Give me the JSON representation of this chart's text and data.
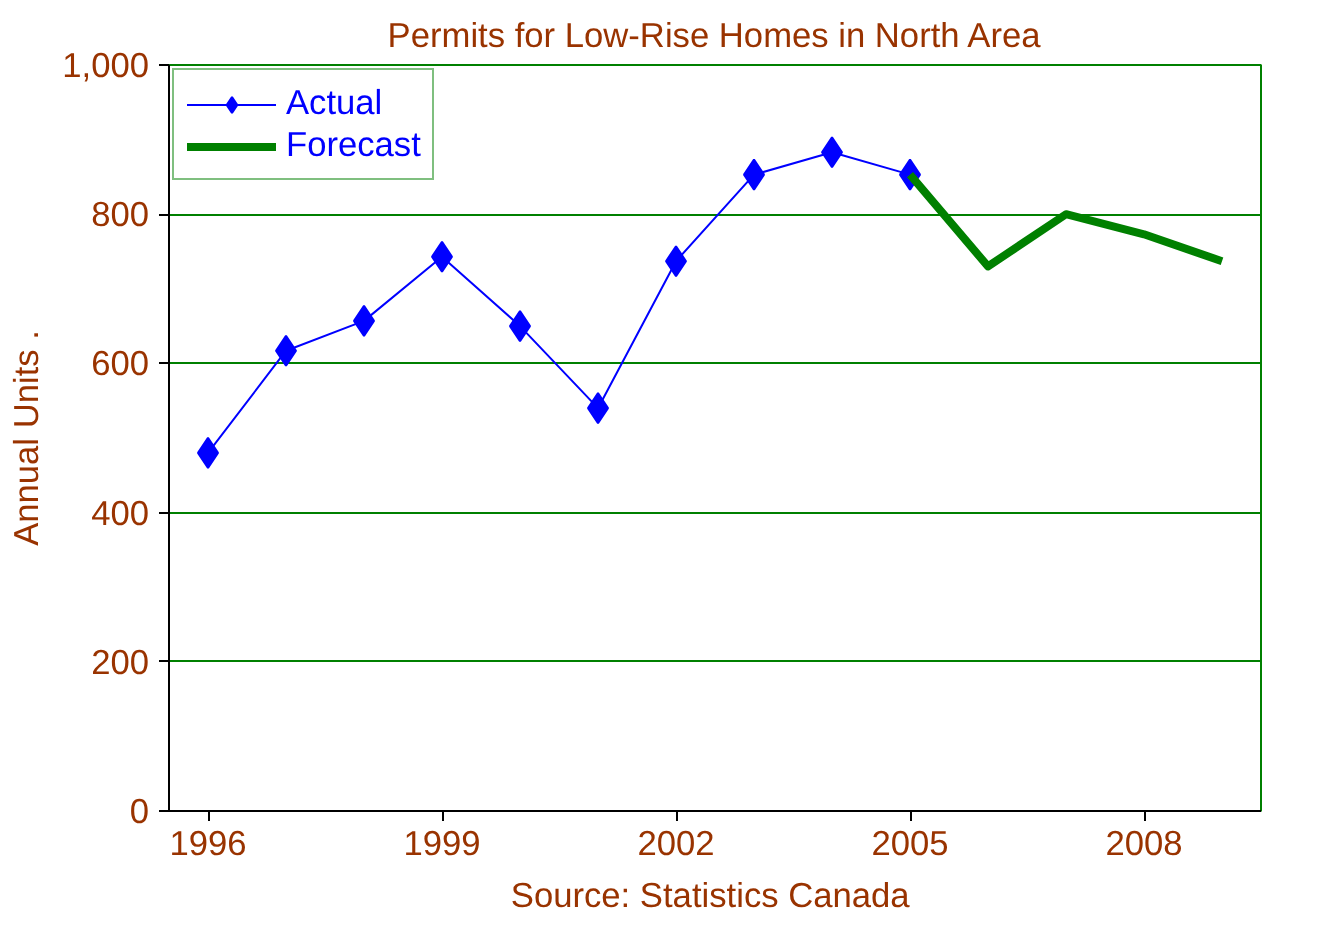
{
  "chart_data": {
    "type": "line",
    "title": "Permits for Low-Rise Homes in North Area",
    "ylabel": "Annual Units .",
    "x": [
      1996,
      1997,
      1998,
      1999,
      2000,
      2001,
      2002,
      2003,
      2004,
      2005,
      2006,
      2007,
      2008,
      2009
    ],
    "series": [
      {
        "name": "Actual",
        "color": "#0000ff",
        "marker": "diamond",
        "values": [
          480,
          617,
          657,
          743,
          650,
          540,
          737,
          853,
          883,
          853,
          null,
          null,
          null,
          null
        ]
      },
      {
        "name": "Forecast",
        "color": "#008000",
        "marker": "none",
        "values": [
          null,
          null,
          null,
          null,
          null,
          null,
          null,
          null,
          null,
          853,
          730,
          800,
          773,
          737
        ]
      }
    ],
    "xlim": [
      1995.5,
      2009.5
    ],
    "xticks": [
      1996,
      1999,
      2002,
      2005,
      2008
    ],
    "ylim": [
      0,
      1000
    ],
    "yticks": [
      0,
      200,
      400,
      600,
      800,
      {
        "value": 1000,
        "label": "1,000"
      }
    ],
    "grid": "y",
    "legend": "top left",
    "annotations": [
      "Source:  Statistics Canada"
    ]
  }
}
